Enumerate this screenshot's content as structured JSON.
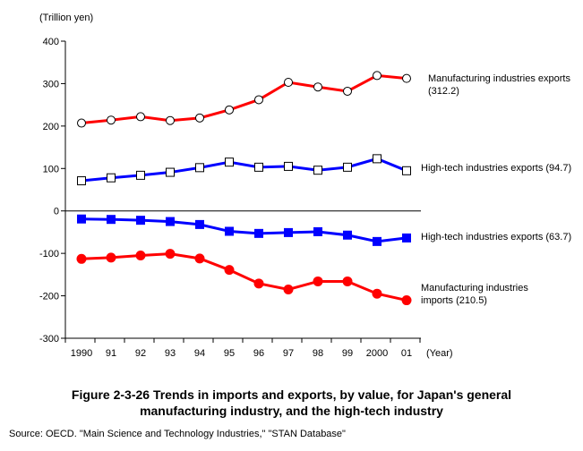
{
  "figure": {
    "caption_line1": "Figure 2-3-26  Trends in imports and exports, by value, for Japan's general",
    "caption_line2": "manufacturing industry, and the high-tech industry",
    "source": "Source: OECD. \"Main Science and Technology Industries,\" \"STAN Database\""
  },
  "chart_data": {
    "type": "line",
    "ylabel": "(Trillion yen)",
    "xlabel": "(Year)",
    "ylim": [
      -300,
      400
    ],
    "yticks": [
      400,
      300,
      200,
      100,
      0,
      -100,
      -200,
      -300
    ],
    "yticklabels": [
      "400",
      "300",
      "200",
      "100",
      "0",
      "-100",
      "-200",
      "-300"
    ],
    "x": [
      "1990",
      "91",
      "92",
      "93",
      "94",
      "95",
      "96",
      "97",
      "98",
      "99",
      "2000",
      "01"
    ],
    "grid": false,
    "series": [
      {
        "name_line1": "Manufacturing industries exports",
        "name_line2": "(312.2)",
        "color": "#ff0000",
        "marker": "circle-open",
        "values": [
          207,
          214,
          222,
          213,
          219,
          238,
          262,
          303,
          292,
          282,
          319,
          312.2
        ]
      },
      {
        "name_line1": "High-tech industries exports (94.7)",
        "name_line2": "",
        "color": "#0000ff",
        "marker": "square-open",
        "values": [
          71,
          78,
          84,
          91,
          102,
          115,
          103,
          105,
          96,
          103,
          123,
          94.7
        ]
      },
      {
        "name_line1": "High-tech industries exports (63.7)",
        "name_line2": "",
        "color": "#0000ff",
        "marker": "square-filled",
        "values": [
          -19,
          -20,
          -22,
          -25,
          -32,
          -48,
          -53,
          -51,
          -49,
          -57,
          -72,
          -63.7
        ]
      },
      {
        "name_line1": "Manufacturing industries",
        "name_line2": "imports (210.5)",
        "color": "#ff0000",
        "marker": "circle-filled",
        "values": [
          -113,
          -110,
          -105,
          -101,
          -112,
          -139,
          -171,
          -185,
          -166,
          -166,
          -195,
          -210.5
        ]
      }
    ]
  }
}
